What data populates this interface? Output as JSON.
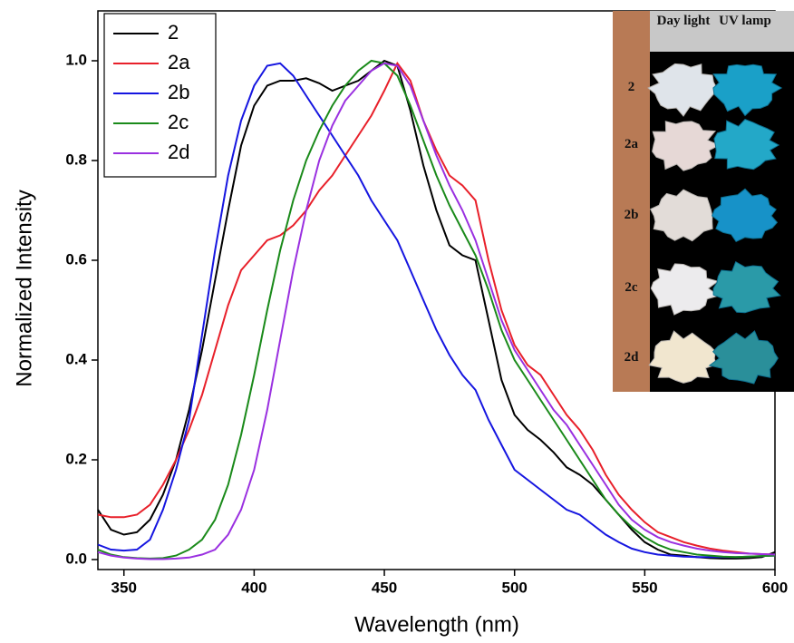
{
  "chart_data": {
    "type": "line",
    "xlabel": "Wavelength (nm)",
    "ylabel": "Normalized Intensity",
    "x": [
      340,
      345,
      350,
      355,
      360,
      365,
      370,
      375,
      380,
      385,
      390,
      395,
      400,
      405,
      410,
      415,
      420,
      425,
      430,
      435,
      440,
      445,
      450,
      455,
      460,
      465,
      470,
      475,
      480,
      485,
      490,
      495,
      500,
      505,
      510,
      515,
      520,
      525,
      530,
      535,
      540,
      545,
      550,
      555,
      560,
      565,
      570,
      575,
      580,
      585,
      590,
      595,
      600
    ],
    "series": [
      {
        "name": "2",
        "color": "#000000",
        "values": [
          0.1,
          0.06,
          0.05,
          0.055,
          0.08,
          0.13,
          0.2,
          0.3,
          0.42,
          0.56,
          0.7,
          0.83,
          0.91,
          0.95,
          0.96,
          0.96,
          0.965,
          0.955,
          0.94,
          0.95,
          0.96,
          0.98,
          1.0,
          0.99,
          0.9,
          0.79,
          0.7,
          0.63,
          0.61,
          0.6,
          0.48,
          0.36,
          0.29,
          0.26,
          0.24,
          0.215,
          0.185,
          0.17,
          0.15,
          0.12,
          0.09,
          0.06,
          0.035,
          0.02,
          0.01,
          0.008,
          0.005,
          0.003,
          0.002,
          0.002,
          0.003,
          0.005,
          0.015
        ]
      },
      {
        "name": "2a",
        "color": "#e8202a",
        "values": [
          0.09,
          0.085,
          0.085,
          0.09,
          0.11,
          0.15,
          0.2,
          0.26,
          0.33,
          0.42,
          0.51,
          0.58,
          0.61,
          0.64,
          0.65,
          0.67,
          0.7,
          0.74,
          0.77,
          0.81,
          0.85,
          0.89,
          0.94,
          0.995,
          0.96,
          0.88,
          0.82,
          0.77,
          0.75,
          0.72,
          0.6,
          0.5,
          0.43,
          0.39,
          0.37,
          0.33,
          0.29,
          0.26,
          0.22,
          0.17,
          0.13,
          0.1,
          0.075,
          0.055,
          0.045,
          0.035,
          0.028,
          0.022,
          0.018,
          0.015,
          0.012,
          0.011,
          0.01
        ]
      },
      {
        "name": "2b",
        "color": "#1515e0",
        "values": [
          0.03,
          0.02,
          0.018,
          0.02,
          0.04,
          0.1,
          0.18,
          0.28,
          0.45,
          0.62,
          0.77,
          0.88,
          0.95,
          0.99,
          0.995,
          0.97,
          0.93,
          0.89,
          0.85,
          0.81,
          0.77,
          0.72,
          0.68,
          0.64,
          0.58,
          0.52,
          0.46,
          0.41,
          0.37,
          0.34,
          0.28,
          0.23,
          0.18,
          0.16,
          0.14,
          0.12,
          0.1,
          0.09,
          0.07,
          0.05,
          0.035,
          0.022,
          0.015,
          0.01,
          0.008,
          0.006,
          0.005,
          0.005,
          0.005,
          0.005,
          0.006,
          0.007,
          0.008
        ]
      },
      {
        "name": "2c",
        "color": "#1a8a1a",
        "values": [
          0.02,
          0.01,
          0.005,
          0.003,
          0.002,
          0.003,
          0.008,
          0.02,
          0.04,
          0.08,
          0.15,
          0.25,
          0.37,
          0.5,
          0.62,
          0.72,
          0.8,
          0.86,
          0.91,
          0.95,
          0.98,
          1.0,
          0.995,
          0.97,
          0.91,
          0.84,
          0.77,
          0.71,
          0.66,
          0.61,
          0.54,
          0.46,
          0.4,
          0.36,
          0.32,
          0.28,
          0.24,
          0.2,
          0.16,
          0.12,
          0.09,
          0.065,
          0.045,
          0.03,
          0.02,
          0.015,
          0.01,
          0.008,
          0.006,
          0.005,
          0.006,
          0.007,
          0.008
        ]
      },
      {
        "name": "2d",
        "color": "#9a30e0",
        "values": [
          0.015,
          0.008,
          0.004,
          0.002,
          0.001,
          0.001,
          0.002,
          0.004,
          0.01,
          0.02,
          0.05,
          0.1,
          0.18,
          0.3,
          0.44,
          0.58,
          0.7,
          0.8,
          0.87,
          0.92,
          0.95,
          0.98,
          0.995,
          0.99,
          0.95,
          0.88,
          0.81,
          0.75,
          0.7,
          0.64,
          0.56,
          0.48,
          0.42,
          0.38,
          0.34,
          0.3,
          0.27,
          0.23,
          0.19,
          0.15,
          0.11,
          0.08,
          0.06,
          0.045,
          0.035,
          0.028,
          0.022,
          0.018,
          0.015,
          0.013,
          0.012,
          0.011,
          0.01
        ]
      }
    ],
    "xlim": [
      340,
      600
    ],
    "xticks": [
      350,
      400,
      450,
      500,
      550,
      600
    ],
    "ylim": [
      -0.02,
      1.1
    ],
    "yticks": [
      {
        "value": 0,
        "label": "0.0"
      },
      0.2,
      0.4,
      0.6,
      0.8,
      {
        "value": 1,
        "label": "1.0"
      }
    ],
    "legend": "top-left"
  },
  "inset": {
    "columns": [
      "Day light",
      "UV lamp"
    ],
    "rows": [
      "2",
      "2a",
      "2b",
      "2c",
      "2d"
    ]
  }
}
